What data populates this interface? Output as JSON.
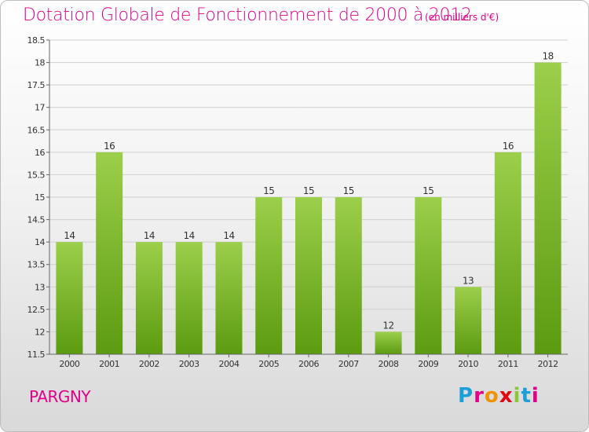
{
  "title": "Dotation Globale de Fonctionnement de 2000 à 2012",
  "subtitle": "(en milliers d'€)",
  "commune": "PARGNY",
  "logo": {
    "text": "Proxiti",
    "colors": [
      "#1a9fd9",
      "#e0008a",
      "#f39200",
      "#e30613",
      "#8cc63f",
      "#1a9fd9",
      "#e0008a"
    ]
  },
  "colors": {
    "bar_top": "#9ccf4b",
    "bar_bottom": "#5c9b10",
    "title": "#e0008a"
  },
  "chart_data": {
    "type": "bar",
    "title": "Dotation Globale de Fonctionnement de 2000 à 2012",
    "subtitle": "(en milliers d'€)",
    "categories": [
      "2000",
      "2001",
      "2002",
      "2003",
      "2004",
      "2005",
      "2006",
      "2007",
      "2008",
      "2009",
      "2010",
      "2011",
      "2012"
    ],
    "values": [
      14,
      16,
      14,
      14,
      14,
      15,
      15,
      15,
      12,
      15,
      13,
      16,
      18
    ],
    "ylim": [
      11.5,
      18.5
    ],
    "yticks": [
      "11.5",
      "12",
      "12.5",
      "13",
      "13.5",
      "14",
      "14.5",
      "15",
      "15.5",
      "16",
      "16.5",
      "17",
      "17.5",
      "18",
      "18.5"
    ],
    "grid": true,
    "xlabel": "",
    "ylabel": ""
  }
}
